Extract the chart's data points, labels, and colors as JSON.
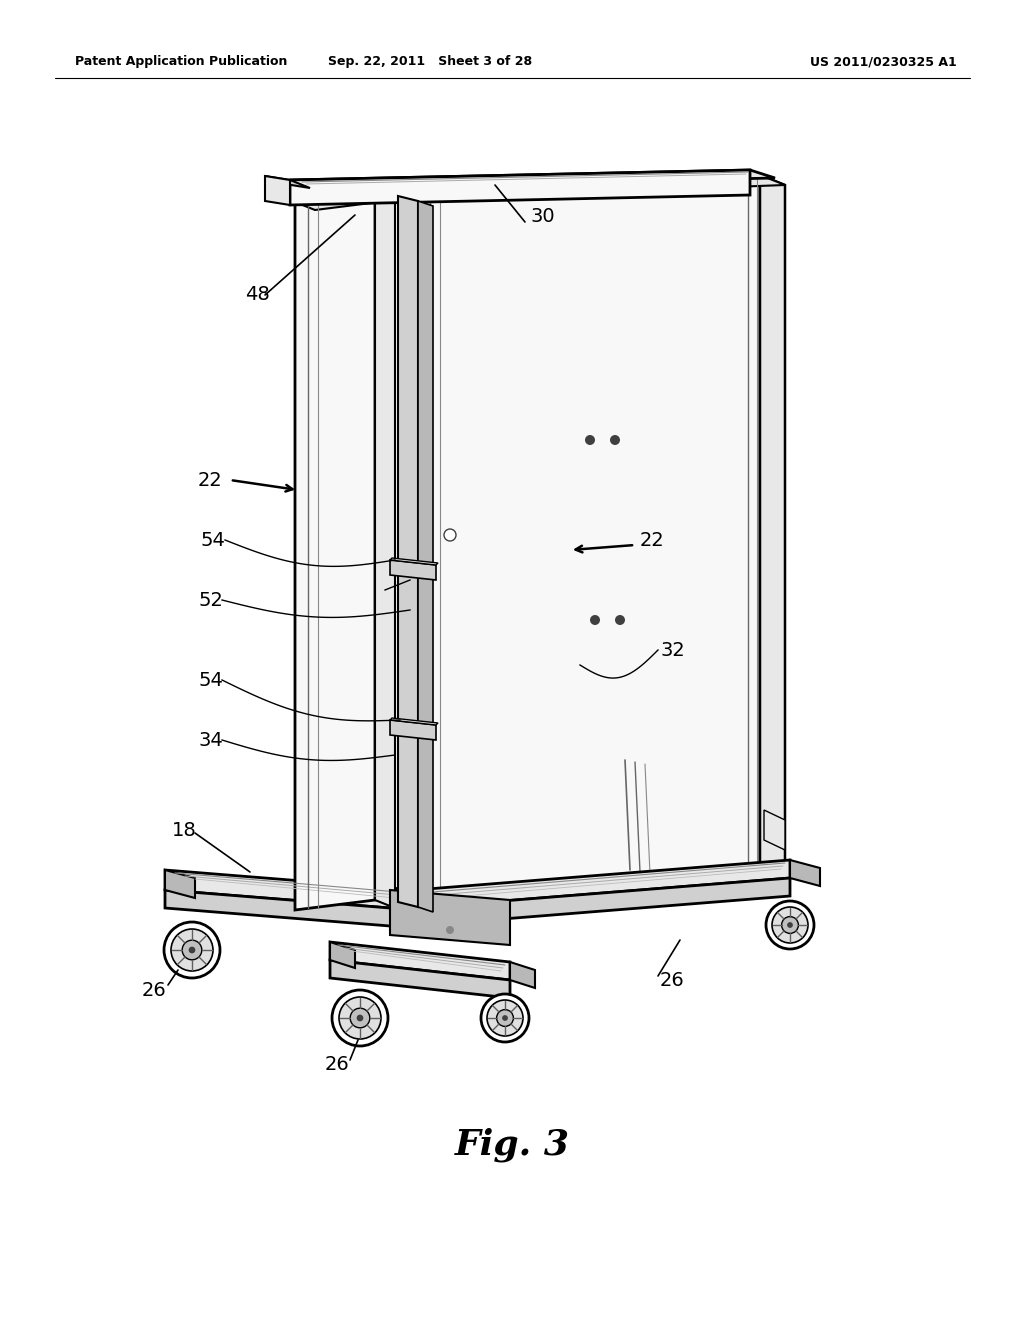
{
  "background_color": "#ffffff",
  "header_left": "Patent Application Publication",
  "header_center": "Sep. 22, 2011   Sheet 3 of 28",
  "header_right": "US 2011/0230325 A1",
  "figure_label": "Fig. 3",
  "line_color": "#000000",
  "face_light": "#f8f8f8",
  "face_mid": "#e8e8e8",
  "face_dark": "#d0d0d0",
  "face_darker": "#b8b8b8"
}
